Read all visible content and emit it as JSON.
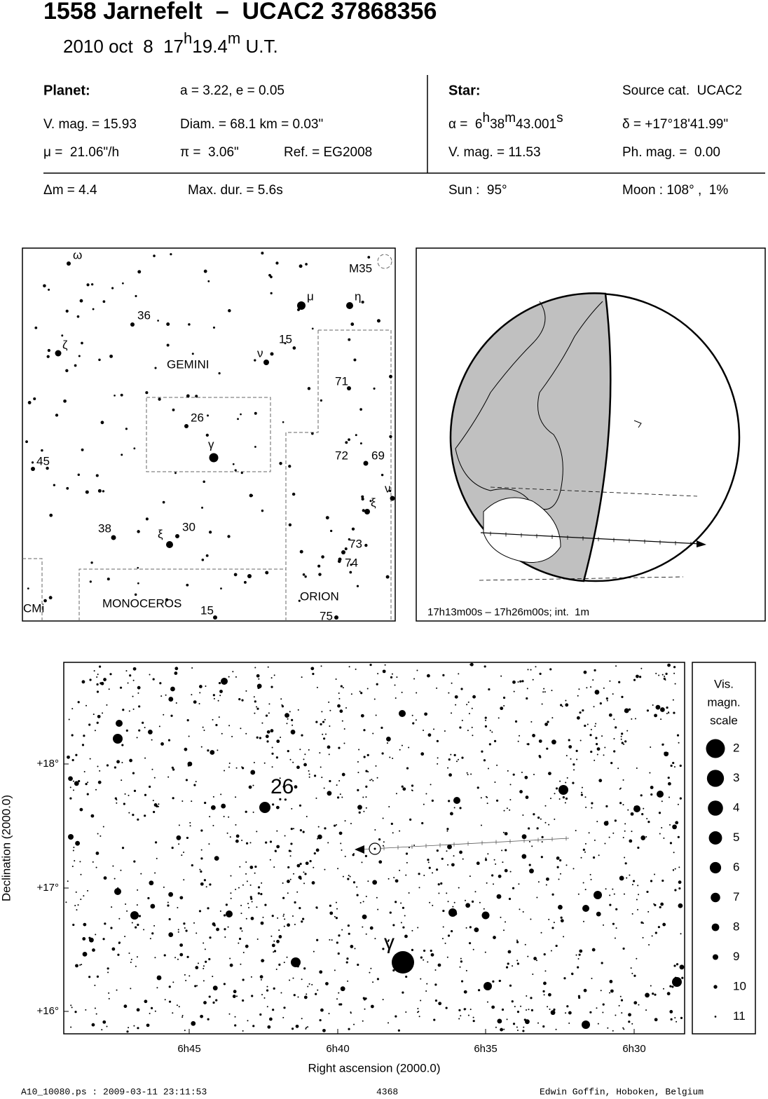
{
  "header": {
    "title": "1558 Jarnefelt  –  UCAC2 37868356",
    "date": "2010 oct  8  17",
    "hour_unit": "h",
    "minutes": "19.4",
    "minute_unit": "m",
    "time_scale": " U.T."
  },
  "planet": {
    "heading": "Planet:",
    "orbit": "a = 3.22, e = 0.05",
    "vmag": "V. mag. = 15.93",
    "diam": "Diam. = 68.1 km = 0.03\"",
    "motion": "μ =  21.06\"/h",
    "parallax": "π =  3.06\"",
    "ref": "Ref. = EG2008"
  },
  "star": {
    "heading": "Star:",
    "source": "Source cat.  UCAC2",
    "ra_prefix": "α =  6",
    "ra_h": "h",
    "ra_min": "38",
    "ra_m": "m",
    "ra_sec": "43.001",
    "ra_s": "s",
    "dec": "δ = +17°18'41.99\"",
    "vmag": "V. mag. = 11.53",
    "phmag": "Ph. mag. =  0.00"
  },
  "event": {
    "dm": "Δm = 4.4",
    "maxdur": "Max. dur. = 5.6s",
    "sun": "Sun :  95°",
    "moon": "Moon : 108° ,  1%"
  },
  "finder_map": {
    "labels": [
      "ω",
      "M35",
      "μ",
      "η",
      "36",
      "ζ",
      "15",
      "ν",
      "GEMINI",
      "71",
      "26",
      "γ",
      "72",
      "69",
      "45",
      "ν",
      "ξ",
      "38",
      "30",
      "ξ",
      "73",
      "74",
      "ORION",
      "CMi",
      "MONOCEROS",
      "15",
      "75"
    ]
  },
  "globe": {
    "caption": "17h13m00s – 17h26m00s; int.  1m"
  },
  "star_chart": {
    "x_label": "Right ascension (2000.0)",
    "y_label": "Declination (2000.0)",
    "x_ticks": [
      "6h45",
      "6h40",
      "6h35",
      "6h30"
    ],
    "y_ticks": [
      "+18°",
      "+17°",
      "+16°"
    ],
    "star_labels": [
      "26",
      "γ"
    ],
    "legend_title": [
      "Vis.",
      "magn.",
      "scale"
    ],
    "legend_values": [
      "2",
      "3",
      "4",
      "5",
      "6",
      "7",
      "8",
      "9",
      "10",
      "11"
    ]
  },
  "footer": {
    "file": "A10_10080.ps : 2009-03-11 23:11:53",
    "number": "4368",
    "author": "Edwin Goffin, Hoboken, Belgium"
  }
}
